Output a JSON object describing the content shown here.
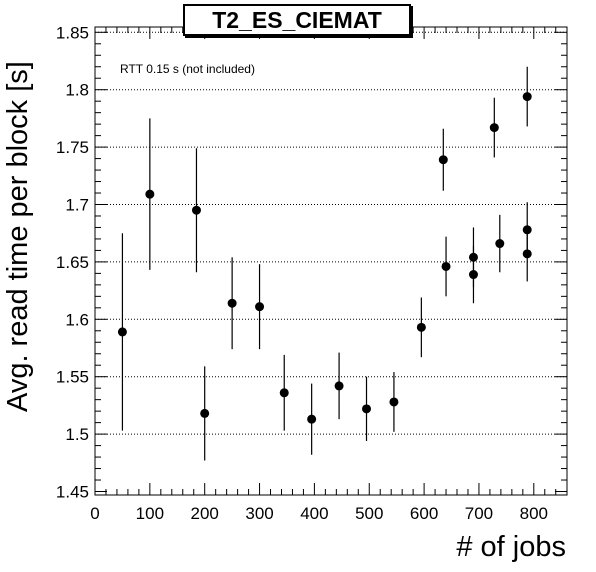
{
  "chart_data": {
    "type": "scatter",
    "title": "T2_ES_CIEMAT",
    "xlabel": "# of jobs",
    "ylabel": "Avg. read time per block [s]",
    "annotation": "RTT 0.15 s (not included)",
    "xlim": [
      0,
      860
    ],
    "ylim": [
      1.445,
      1.855
    ],
    "x_ticks": [
      0,
      100,
      200,
      300,
      400,
      500,
      600,
      700,
      800
    ],
    "y_ticks": [
      1.45,
      1.5,
      1.55,
      1.6,
      1.65,
      1.7,
      1.75,
      1.8,
      1.85
    ],
    "grid": "horizontal dotted",
    "series": [
      {
        "points": [
          {
            "x": 50,
            "y": 1.589,
            "err": 0.086
          },
          {
            "x": 100,
            "y": 1.709,
            "err": 0.066
          },
          {
            "x": 185,
            "y": 1.695,
            "err": 0.054
          },
          {
            "x": 200,
            "y": 1.518,
            "err": 0.041
          },
          {
            "x": 250,
            "y": 1.614,
            "err": 0.04
          },
          {
            "x": 300,
            "y": 1.611,
            "err": 0.037
          },
          {
            "x": 345,
            "y": 1.536,
            "err": 0.033
          },
          {
            "x": 395,
            "y": 1.513,
            "err": 0.031
          },
          {
            "x": 445,
            "y": 1.542,
            "err": 0.029
          },
          {
            "x": 495,
            "y": 1.522,
            "err": 0.028
          },
          {
            "x": 545,
            "y": 1.528,
            "err": 0.026
          },
          {
            "x": 595,
            "y": 1.593,
            "err": 0.026
          },
          {
            "x": 635,
            "y": 1.739,
            "err": 0.027
          },
          {
            "x": 640,
            "y": 1.646,
            "err": 0.026
          },
          {
            "x": 690,
            "y": 1.654,
            "err": 0.026
          },
          {
            "x": 690,
            "y": 1.639,
            "err": 0.025
          },
          {
            "x": 728,
            "y": 1.767,
            "err": 0.026
          },
          {
            "x": 738,
            "y": 1.666,
            "err": 0.025
          },
          {
            "x": 788,
            "y": 1.794,
            "err": 0.026
          },
          {
            "x": 788,
            "y": 1.678,
            "err": 0.024
          },
          {
            "x": 788,
            "y": 1.657,
            "err": 0.024
          }
        ]
      }
    ]
  }
}
